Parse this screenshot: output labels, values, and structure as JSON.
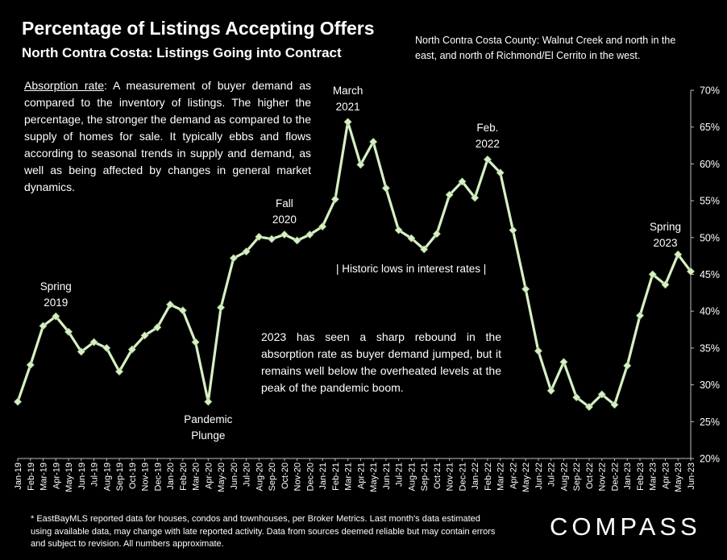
{
  "title": "Percentage of Listings Accepting Offers",
  "subtitle": "North Contra Costa: Listings Going into Contract",
  "region_note": "North Contra Costa County: Walnut Creek and north in the east, and north of Richmond/El Cerrito in the west.",
  "definition": {
    "term": "Absorption rate",
    "text": ":  A measurement of buyer demand as compared to the inventory of listings. The higher the percentage, the stronger the demand as compared to the supply of homes for sale. It typically ebbs and flows according to seasonal trends in supply and demand, as well as being affected by changes in general market dynamics."
  },
  "rebound_note": "2023 has seen a sharp rebound in the absorption rate as buyer demand jumped, but it remains well below the overheated levels at the peak of the pandemic boom.",
  "footnote": "* EastBayMLS reported data for houses, condos and townhouses, per Broker Metrics. Last month's data estimated using available data, may change with late reported activity. Data from sources deemed reliable but may contain errors and subject to revision. All numbers approximate.",
  "logo": "COMPASS",
  "colors": {
    "background": "#000000",
    "line": "#d6f0c4",
    "text": "#ffffff",
    "axis": "#bfbfbf"
  },
  "chart_data": {
    "type": "line",
    "x": [
      "Jan-19",
      "Feb-19",
      "Mar-19",
      "Apr-19",
      "May-19",
      "Jun-19",
      "Jul-19",
      "Aug-19",
      "Sep-19",
      "Oct-19",
      "Nov-19",
      "Dec-19",
      "Jan-20",
      "Feb-20",
      "Mar-20",
      "Apr-20",
      "May-20",
      "Jun-20",
      "Jul-20",
      "Aug-20",
      "Sep-20",
      "Oct-20",
      "Nov-20",
      "Dec-20",
      "Jan-21",
      "Feb-21",
      "Mar-21",
      "Apr-21",
      "May-21",
      "Jun-21",
      "Jul-21",
      "Aug-21",
      "Sep-21",
      "Oct-21",
      "Nov-21",
      "Dec-21",
      "Jan-22",
      "Feb-22",
      "Mar-22",
      "Apr-22",
      "May-22",
      "Jun-22",
      "Jul-22",
      "Aug-22",
      "Sep-22",
      "Oct-22",
      "Nov-22",
      "Dec-22",
      "Jan-23",
      "Feb-23",
      "Mar-23",
      "Apr-23",
      "May-23",
      "Jun-23"
    ],
    "series": [
      {
        "values": [
          27.7,
          32.7,
          38.0,
          39.3,
          37.2,
          34.5,
          35.8,
          35.0,
          31.8,
          34.8,
          36.7,
          37.8,
          40.9,
          40.1,
          35.8,
          27.7,
          40.5,
          47.2,
          48.1,
          50.1,
          49.8,
          50.4,
          49.6,
          50.4,
          51.5,
          55.2,
          65.7,
          59.9,
          63.0,
          56.7,
          51.0,
          49.9,
          48.4,
          50.5,
          55.8,
          57.6,
          55.4,
          60.6,
          58.8,
          51.0,
          43.0,
          34.6,
          29.2,
          33.1,
          28.3,
          27.0,
          28.7,
          27.3,
          32.6,
          39.4,
          45.0,
          43.6,
          47.7,
          45.4
        ]
      }
    ],
    "ylim": [
      20,
      70
    ],
    "yticks": [
      "20%",
      "25%",
      "30%",
      "35%",
      "40%",
      "45%",
      "50%",
      "55%",
      "60%",
      "65%",
      "70%"
    ],
    "y_axis_side": "right",
    "grid": false,
    "annotations": [
      {
        "lines": [
          "Spring",
          "2019"
        ],
        "x": "Apr-19"
      },
      {
        "lines": [
          "Pandemic",
          "Plunge"
        ],
        "x": "Apr-20"
      },
      {
        "lines": [
          "Fall",
          "2020"
        ],
        "x": "Oct-20"
      },
      {
        "lines": [
          "March",
          "2021"
        ],
        "x": "Mar-21"
      },
      {
        "lines": [
          "Feb.",
          "2022"
        ],
        "x": "Feb-22"
      },
      {
        "lines": [
          "Spring",
          "2023"
        ],
        "x": "Apr-23"
      },
      {
        "lines": [
          "| Historic lows in interest rates |"
        ],
        "x": "Sep-21"
      }
    ]
  }
}
